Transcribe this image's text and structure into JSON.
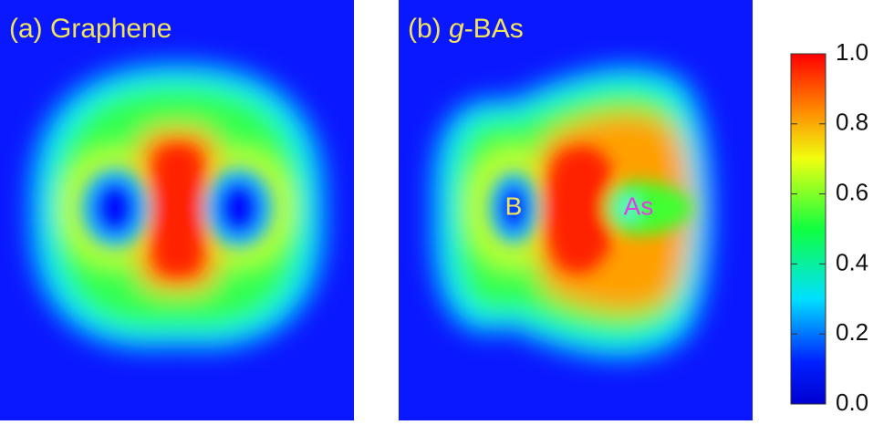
{
  "panels": [
    {
      "title": {
        "prefix": "(a) ",
        "name": "Graphene"
      }
    },
    {
      "title": {
        "prefix": "(b) ",
        "italic": "g",
        "name": "-BAs"
      },
      "atoms": [
        "B",
        "As"
      ]
    }
  ],
  "colorbar": {
    "range": [
      0,
      1
    ],
    "ticks": [
      {
        "value": 0,
        "label": "0.0"
      },
      0.2,
      0.4,
      0.6,
      0.8,
      {
        "value": 1,
        "label": "1.0"
      }
    ]
  }
}
